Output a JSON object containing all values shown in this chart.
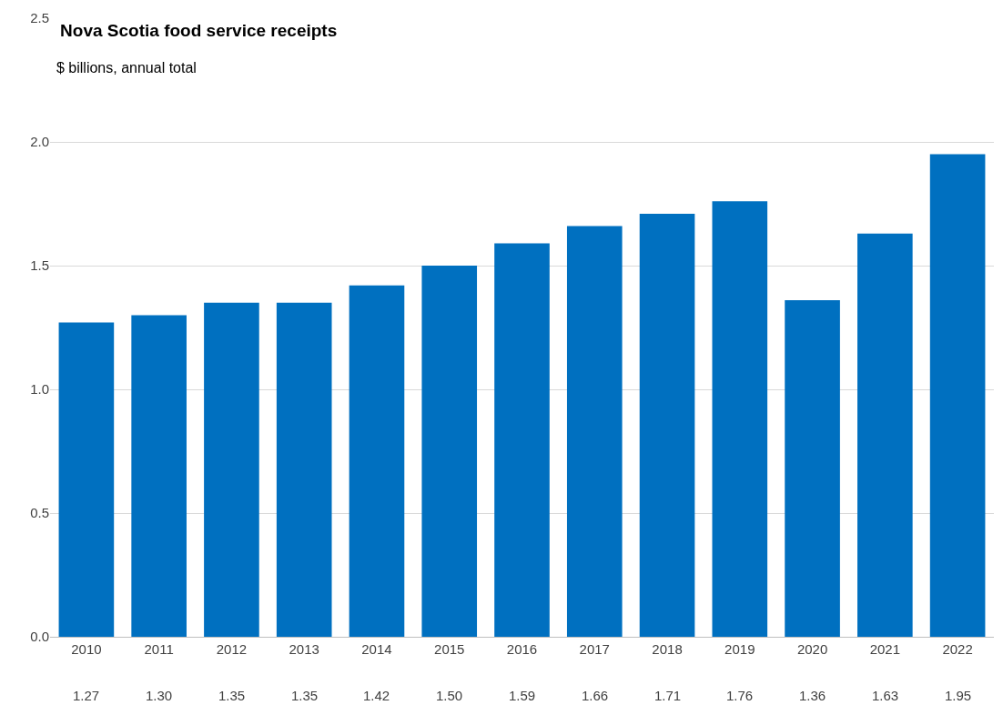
{
  "chart_data": {
    "type": "bar",
    "title": "Nova Scotia food service receipts",
    "subtitle": "$ billions, annual total",
    "categories": [
      "2010",
      "2011",
      "2012",
      "2013",
      "2014",
      "2015",
      "2016",
      "2017",
      "2018",
      "2019",
      "2020",
      "2021",
      "2022"
    ],
    "values": [
      1.27,
      1.3,
      1.35,
      1.35,
      1.42,
      1.5,
      1.59,
      1.66,
      1.71,
      1.76,
      1.36,
      1.63,
      1.95
    ],
    "value_labels": [
      "1.27",
      "1.30",
      "1.35",
      "1.35",
      "1.42",
      "1.50",
      "1.59",
      "1.66",
      "1.71",
      "1.76",
      "1.36",
      "1.63",
      "1.95"
    ],
    "color": "#0070c0",
    "ylim": [
      0,
      2.5
    ],
    "yticks": [
      {
        "value": 0,
        "label": "0.0"
      },
      {
        "value": 0.5,
        "label": "0.5"
      },
      {
        "value": 1,
        "label": "1.0"
      },
      {
        "value": 1.5,
        "label": "1.5"
      },
      {
        "value": 2,
        "label": "2.0"
      },
      {
        "value": 2.5,
        "label": "2.5"
      }
    ],
    "grid": "y",
    "legend": false
  }
}
